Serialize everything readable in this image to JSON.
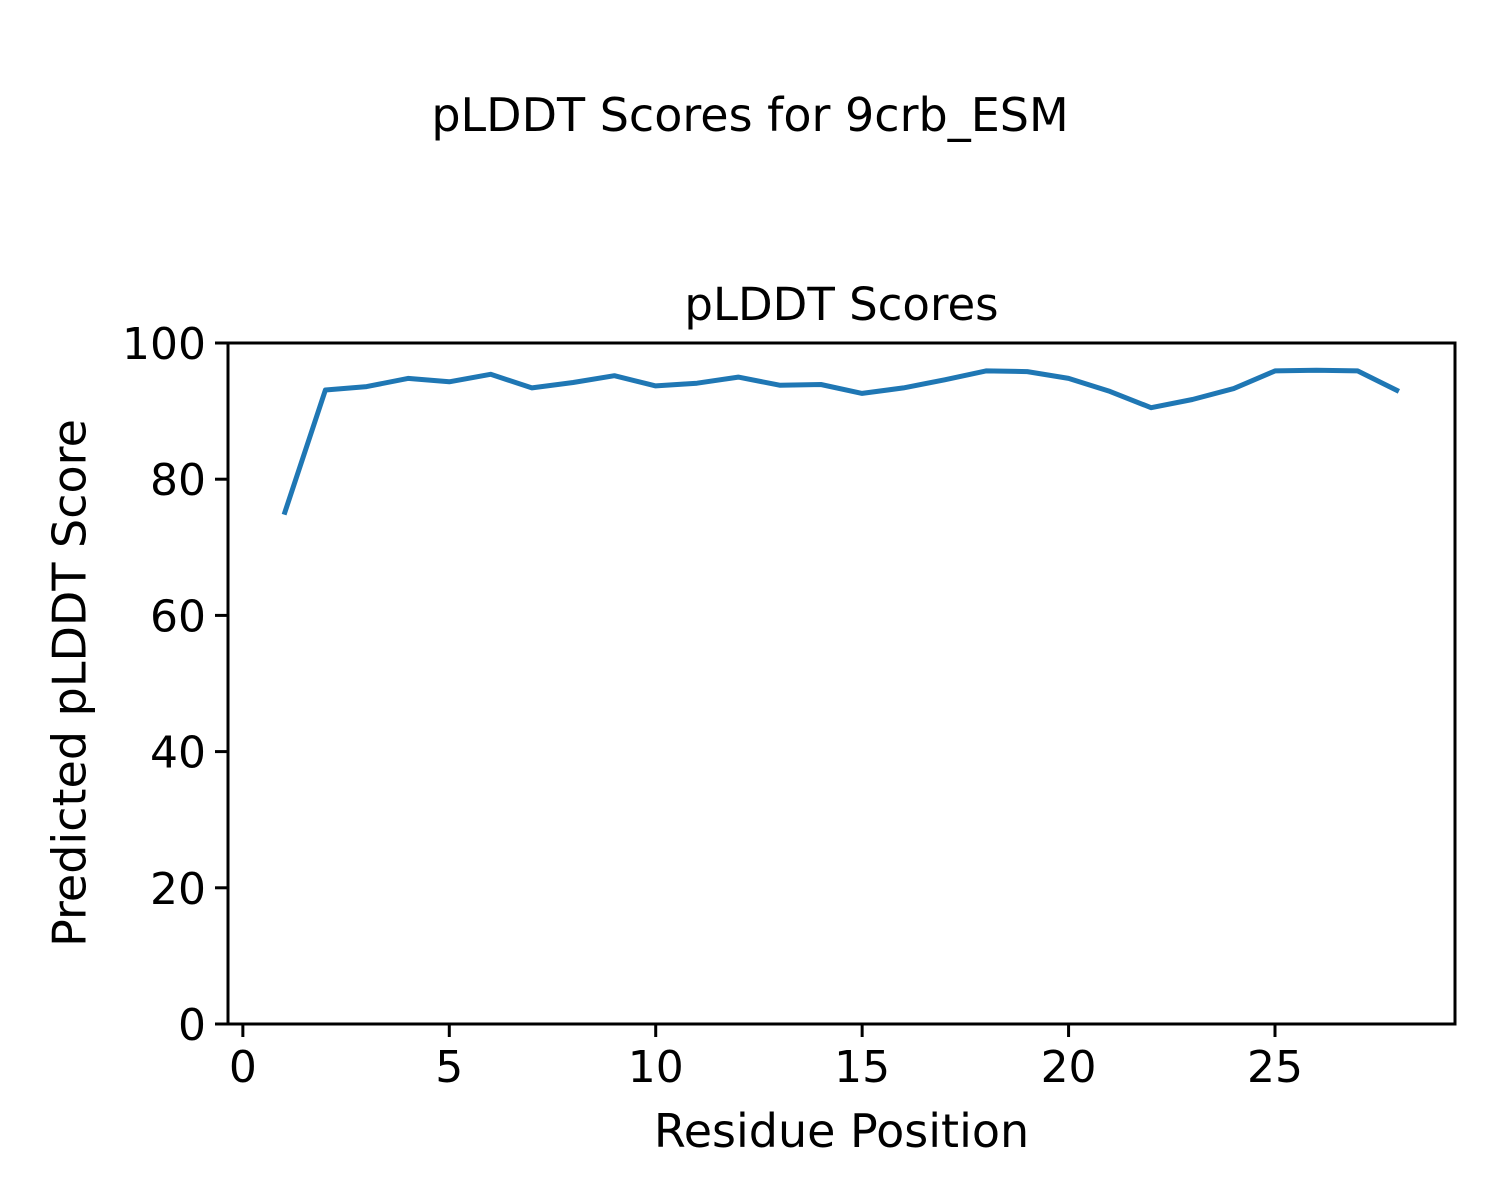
{
  "figure": {
    "suptitle": "pLDDT Scores for 9crb_ESM",
    "background": "#ffffff"
  },
  "chart_data": {
    "type": "line",
    "title": "pLDDT Scores",
    "xlabel": "Residue Position",
    "ylabel": "Predicted pLDDT Score",
    "x": [
      1,
      2,
      3,
      4,
      5,
      6,
      7,
      8,
      9,
      10,
      11,
      12,
      13,
      14,
      15,
      16,
      17,
      18,
      19,
      20,
      21,
      22,
      23,
      24,
      25,
      26,
      27,
      28
    ],
    "values": [
      74.8,
      93.1,
      93.6,
      94.8,
      94.3,
      95.4,
      93.4,
      94.2,
      95.2,
      93.7,
      94.1,
      95.0,
      93.8,
      93.9,
      92.6,
      93.4,
      94.6,
      95.9,
      95.8,
      94.8,
      92.9,
      90.5,
      91.7,
      93.3,
      95.9,
      96.0,
      95.9,
      92.9
    ],
    "xlim": [
      -0.36,
      29.36
    ],
    "ylim": [
      0,
      100
    ],
    "x_ticks": [
      0,
      5,
      10,
      15,
      20,
      25
    ],
    "y_ticks": [
      0,
      20,
      40,
      60,
      80,
      100
    ],
    "grid": false,
    "legend_position": "none",
    "line_color": "#1f77b4",
    "line_width": 5,
    "spine_color": "#000000",
    "tick_font_size": 44
  }
}
